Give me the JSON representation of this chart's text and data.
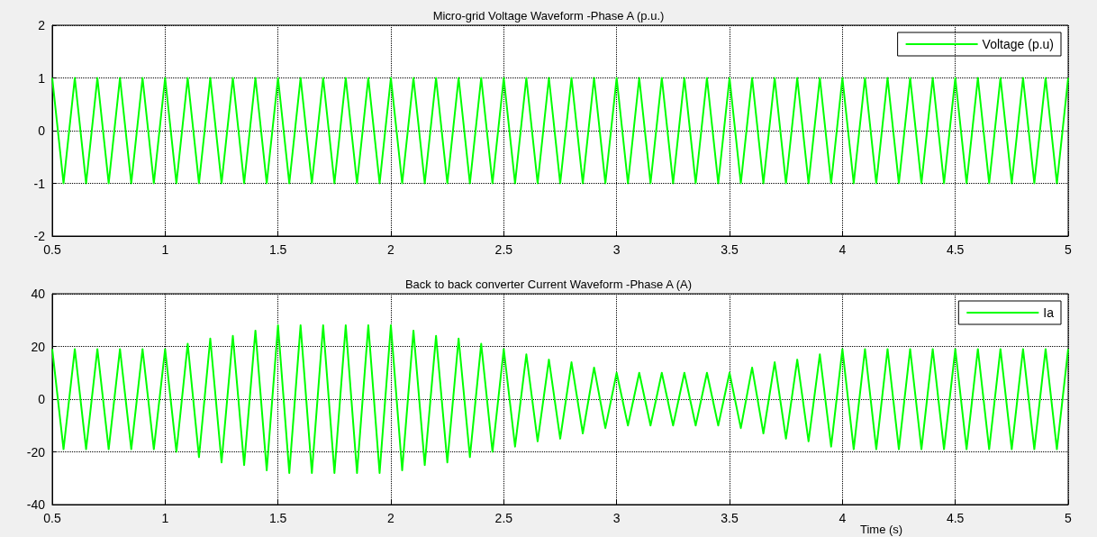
{
  "chart_data": [
    {
      "type": "line",
      "title": "Micro-grid Voltage Waveform -Phase A (p.u.)",
      "x": [
        0.5,
        0.55,
        0.6,
        0.65,
        0.7,
        0.75,
        0.8,
        0.85,
        0.9,
        0.95,
        1,
        1.05,
        1.1,
        1.15,
        1.2,
        1.25,
        1.3,
        1.35,
        1.4,
        1.45,
        1.5,
        1.55,
        1.6,
        1.65,
        1.7,
        1.75,
        1.8,
        1.85,
        1.9,
        1.95,
        2,
        2.05,
        2.1,
        2.15,
        2.2,
        2.25,
        2.3,
        2.35,
        2.4,
        2.45,
        2.5,
        2.55,
        2.6,
        2.65,
        2.7,
        2.75,
        2.8,
        2.85,
        2.9,
        2.95,
        3,
        3.05,
        3.1,
        3.15,
        3.2,
        3.25,
        3.3,
        3.35,
        3.4,
        3.45,
        3.5,
        3.55,
        3.6,
        3.65,
        3.7,
        3.75,
        3.8,
        3.85,
        3.9,
        3.95,
        4,
        4.05,
        4.1,
        4.15,
        4.2,
        4.25,
        4.3,
        4.35,
        4.4,
        4.45,
        4.5,
        4.55,
        4.6,
        4.65,
        4.7,
        4.75,
        4.8,
        4.85,
        4.9,
        4.95,
        5
      ],
      "series": [
        {
          "name": "Voltage (p.u)",
          "color": "#00ff00",
          "values": [
            1,
            -1,
            1,
            -1,
            1,
            -1,
            1,
            -1,
            1,
            -1,
            1,
            -1,
            1,
            -1,
            1,
            -1,
            1,
            -1,
            1,
            -1,
            1,
            -1,
            1,
            -1,
            1,
            -1,
            1,
            -1,
            1,
            -1,
            1,
            -1,
            1,
            -1,
            1,
            -1,
            1,
            -1,
            1,
            -1,
            1,
            -1,
            1,
            -1,
            1,
            -1,
            1,
            -1,
            1,
            -1,
            1,
            -1,
            1,
            -1,
            1,
            -1,
            1,
            -1,
            1,
            -1,
            1,
            -1,
            1,
            -1,
            1,
            -1,
            1,
            -1,
            1,
            -1,
            1,
            -1,
            1,
            -1,
            1,
            -1,
            1,
            -1,
            1,
            -1,
            1,
            -1,
            1,
            -1,
            1,
            -1,
            1,
            -1,
            1,
            -1,
            1
          ]
        }
      ],
      "xlim": [
        0.5,
        5
      ],
      "xticks": [
        0.5,
        1,
        1.5,
        2,
        2.5,
        3,
        3.5,
        4,
        4.5,
        5
      ],
      "ylim": [
        -2,
        2
      ],
      "yticks": [
        -2,
        -1,
        0,
        1,
        2
      ],
      "grid": true,
      "legend": "top right",
      "marker": "none",
      "line_style": "solid"
    },
    {
      "type": "line",
      "title": "Back to back converter Current Waveform -Phase A (A)",
      "xlabel": "Time (s)",
      "x": [
        0.5,
        0.55,
        0.6,
        0.65,
        0.7,
        0.75,
        0.8,
        0.85,
        0.9,
        0.95,
        1,
        1.05,
        1.1,
        1.15,
        1.2,
        1.25,
        1.3,
        1.35,
        1.4,
        1.45,
        1.5,
        1.55,
        1.6,
        1.65,
        1.7,
        1.75,
        1.8,
        1.85,
        1.9,
        1.95,
        2,
        2.05,
        2.1,
        2.15,
        2.2,
        2.25,
        2.3,
        2.35,
        2.4,
        2.45,
        2.5,
        2.55,
        2.6,
        2.65,
        2.7,
        2.75,
        2.8,
        2.85,
        2.9,
        2.95,
        3,
        3.05,
        3.1,
        3.15,
        3.2,
        3.25,
        3.3,
        3.35,
        3.4,
        3.45,
        3.5,
        3.55,
        3.6,
        3.65,
        3.7,
        3.75,
        3.8,
        3.85,
        3.9,
        3.95,
        4,
        4.05,
        4.1,
        4.15,
        4.2,
        4.25,
        4.3,
        4.35,
        4.4,
        4.45,
        4.5,
        4.55,
        4.6,
        4.65,
        4.7,
        4.75,
        4.8,
        4.85,
        4.9,
        4.95,
        5
      ],
      "series": [
        {
          "name": "Ia",
          "color": "#00ff00",
          "values": [
            19,
            -19,
            19,
            -19,
            19,
            -19,
            19,
            -19,
            19,
            -19,
            19,
            -20,
            21,
            -22,
            23,
            -24,
            24,
            -25,
            26,
            -27,
            28,
            -28,
            28,
            -28,
            28,
            -28,
            28,
            -28,
            28,
            -28,
            28,
            -27,
            26,
            -25,
            24,
            -24,
            23,
            -22,
            21,
            -20,
            19,
            -18,
            17,
            -16,
            15,
            -15,
            14,
            -13,
            12,
            -11,
            10,
            -10,
            10,
            -10,
            10,
            -10,
            10,
            -10,
            10,
            -10,
            10,
            -11,
            12,
            -13,
            14,
            -15,
            15,
            -16,
            17,
            -18,
            19,
            -19,
            19,
            -19,
            19,
            -19,
            19,
            -19,
            19,
            -19,
            19,
            -19,
            19,
            -19,
            19,
            -19,
            19,
            -19,
            19,
            -19,
            19
          ]
        }
      ],
      "xlim": [
        0.5,
        5
      ],
      "xticks": [
        0.5,
        1,
        1.5,
        2,
        2.5,
        3,
        3.5,
        4,
        4.5,
        5
      ],
      "ylim": [
        -40,
        40
      ],
      "yticks": [
        -40,
        -20,
        0,
        20,
        40
      ],
      "grid": true,
      "legend": "top right",
      "marker": "none",
      "line_style": "solid"
    }
  ]
}
